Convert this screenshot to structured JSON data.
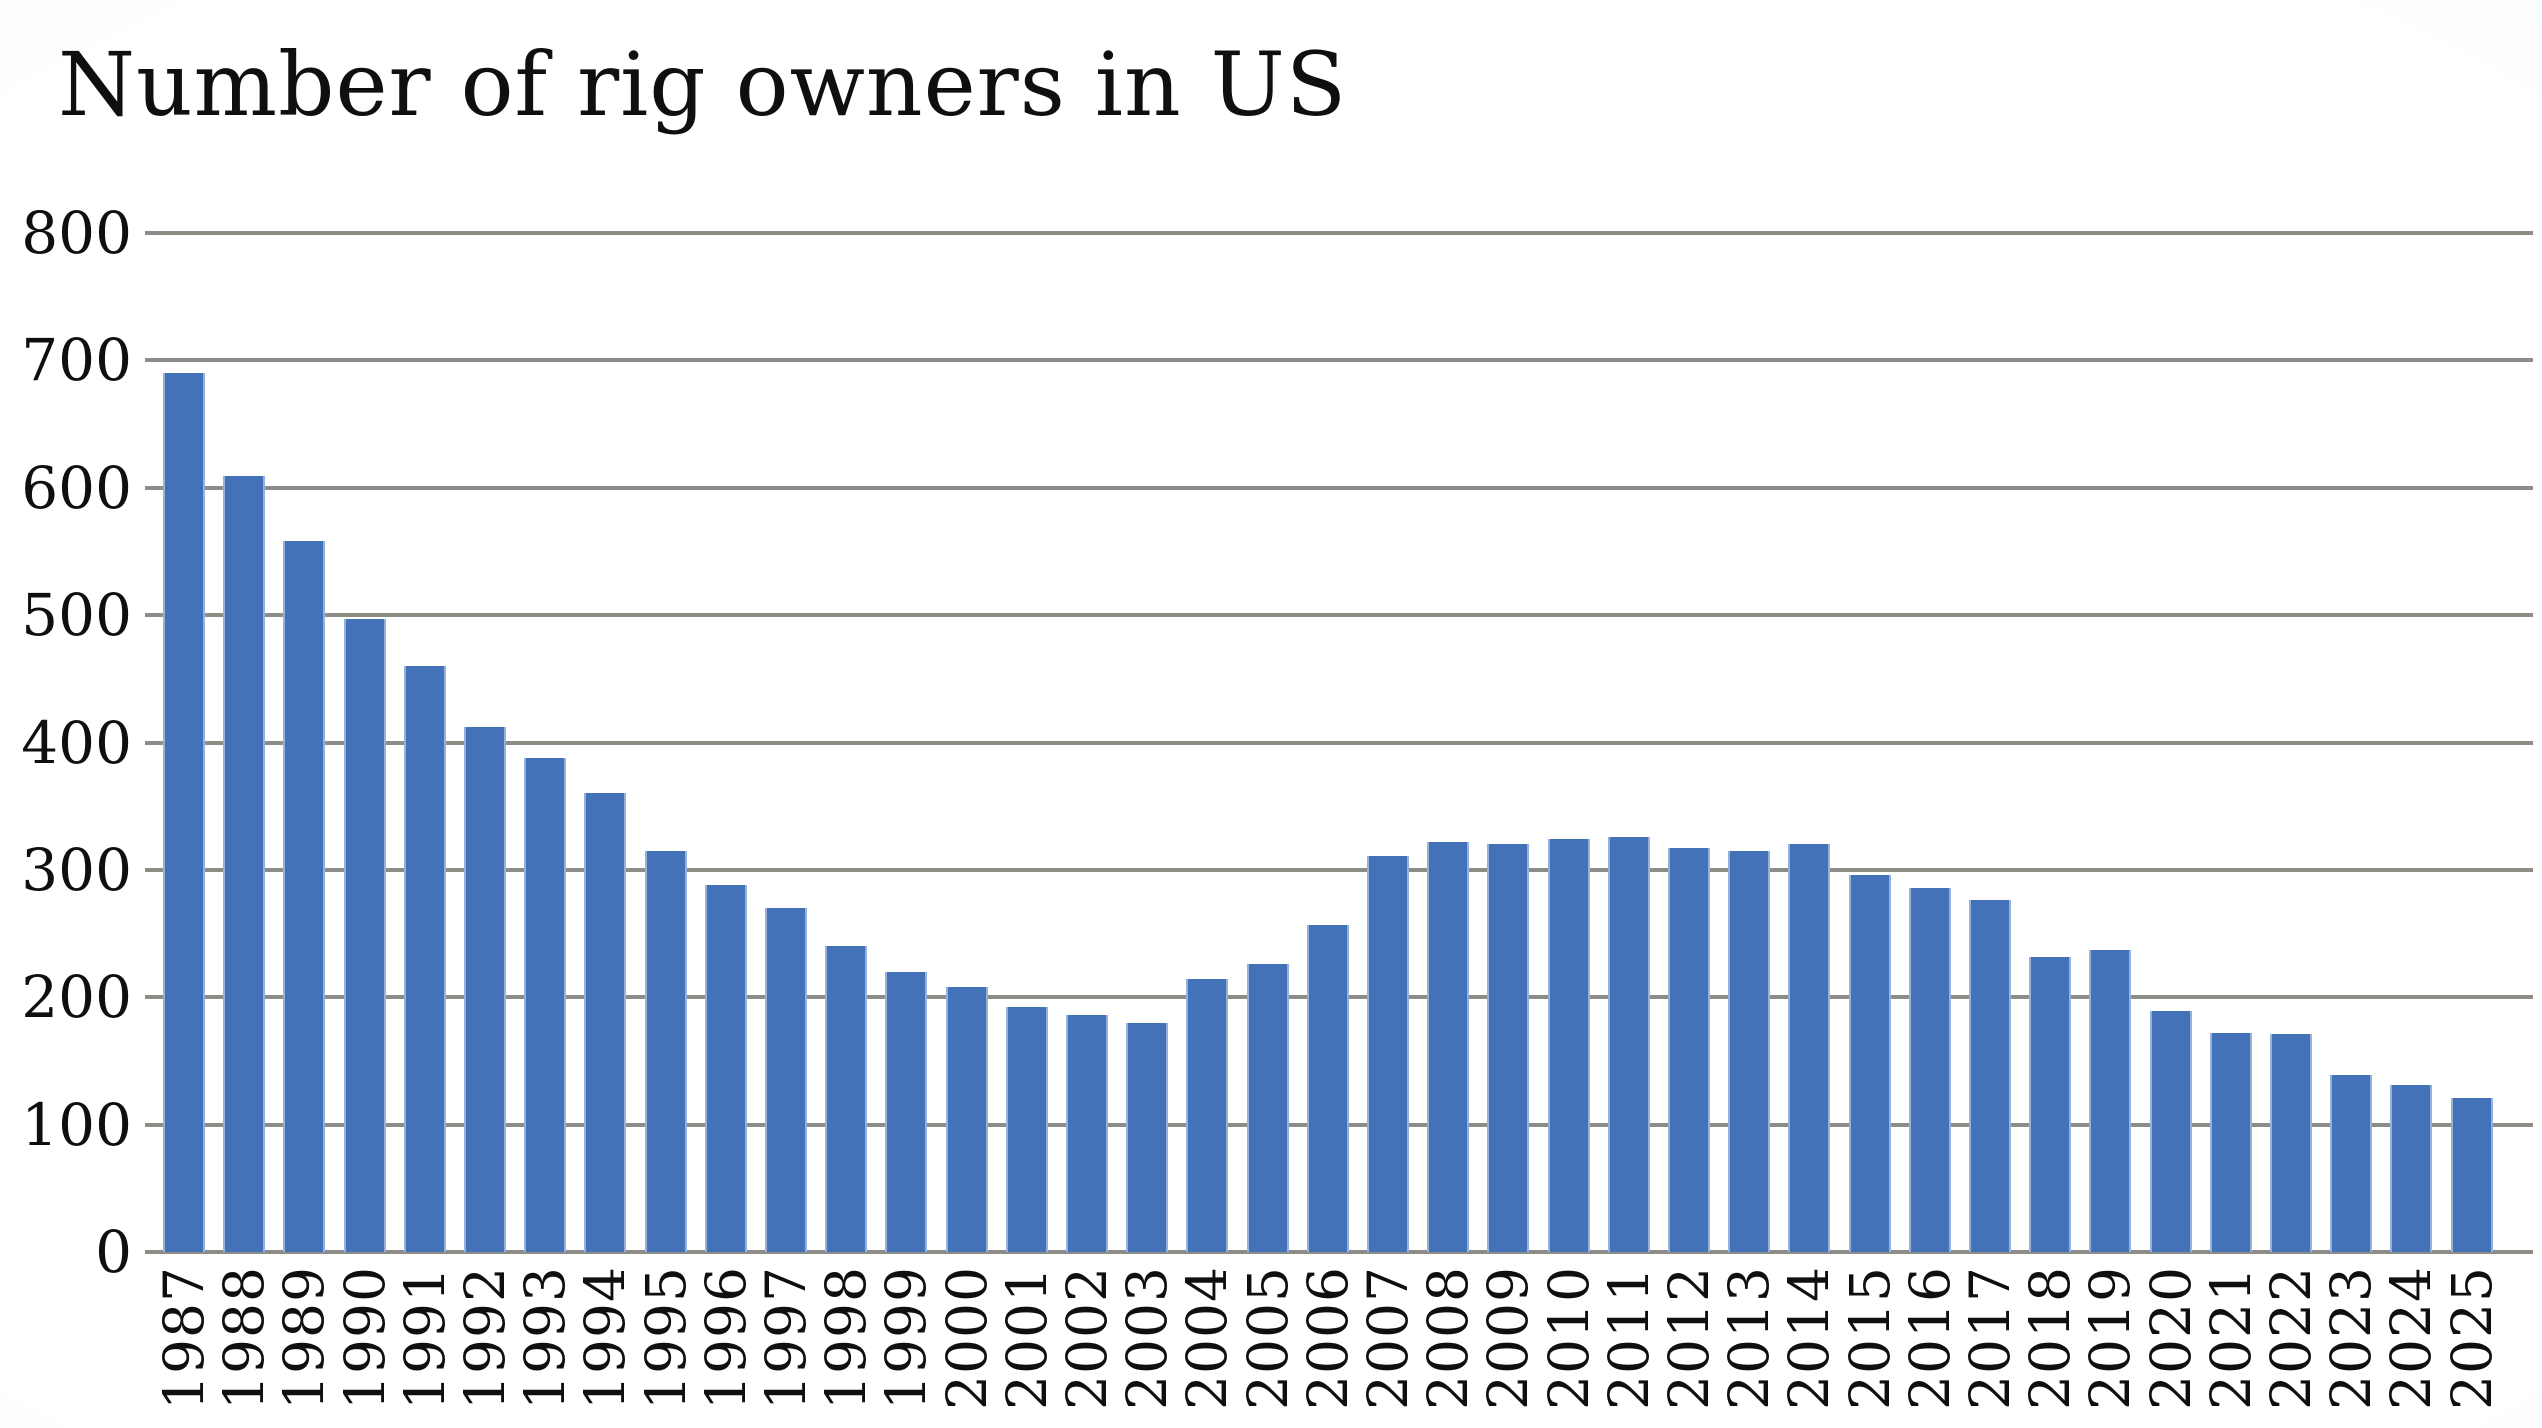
{
  "title": "Number of rig owners in US",
  "colors": {
    "bar": "#4472b9",
    "gridline": "#8d8d88",
    "text": "#0f0f0f",
    "background_edge": "#e9edf2"
  },
  "chart_data": {
    "type": "bar",
    "title": "Number of rig owners in US",
    "categories": [
      "1987",
      "1988",
      "1989",
      "1990",
      "1991",
      "1992",
      "1993",
      "1994",
      "1995",
      "1996",
      "1997",
      "1998",
      "1999",
      "2000",
      "2001",
      "2002",
      "2003",
      "2004",
      "2005",
      "2006",
      "2007",
      "2008",
      "2009",
      "2010",
      "2011",
      "2012",
      "2013",
      "2014",
      "2015",
      "2016",
      "2017",
      "2018",
      "2019",
      "2020",
      "2021",
      "2022",
      "2023",
      "2024",
      "2025"
    ],
    "values": [
      690,
      609,
      558,
      497,
      460,
      412,
      388,
      360,
      315,
      288,
      270,
      240,
      220,
      208,
      192,
      186,
      180,
      214,
      226,
      257,
      311,
      322,
      320,
      324,
      326,
      317,
      315,
      320,
      296,
      286,
      276,
      232,
      237,
      189,
      172,
      171,
      139,
      131,
      121
    ],
    "xlabel": "",
    "ylabel": "",
    "ylim": [
      0,
      800
    ],
    "ytick_step": 100,
    "yticks": [
      "0",
      "100",
      "200",
      "300",
      "400",
      "500",
      "600",
      "700",
      "800"
    ],
    "grid": "horizontal",
    "legend": "none",
    "bar_color": "#4472b9"
  }
}
